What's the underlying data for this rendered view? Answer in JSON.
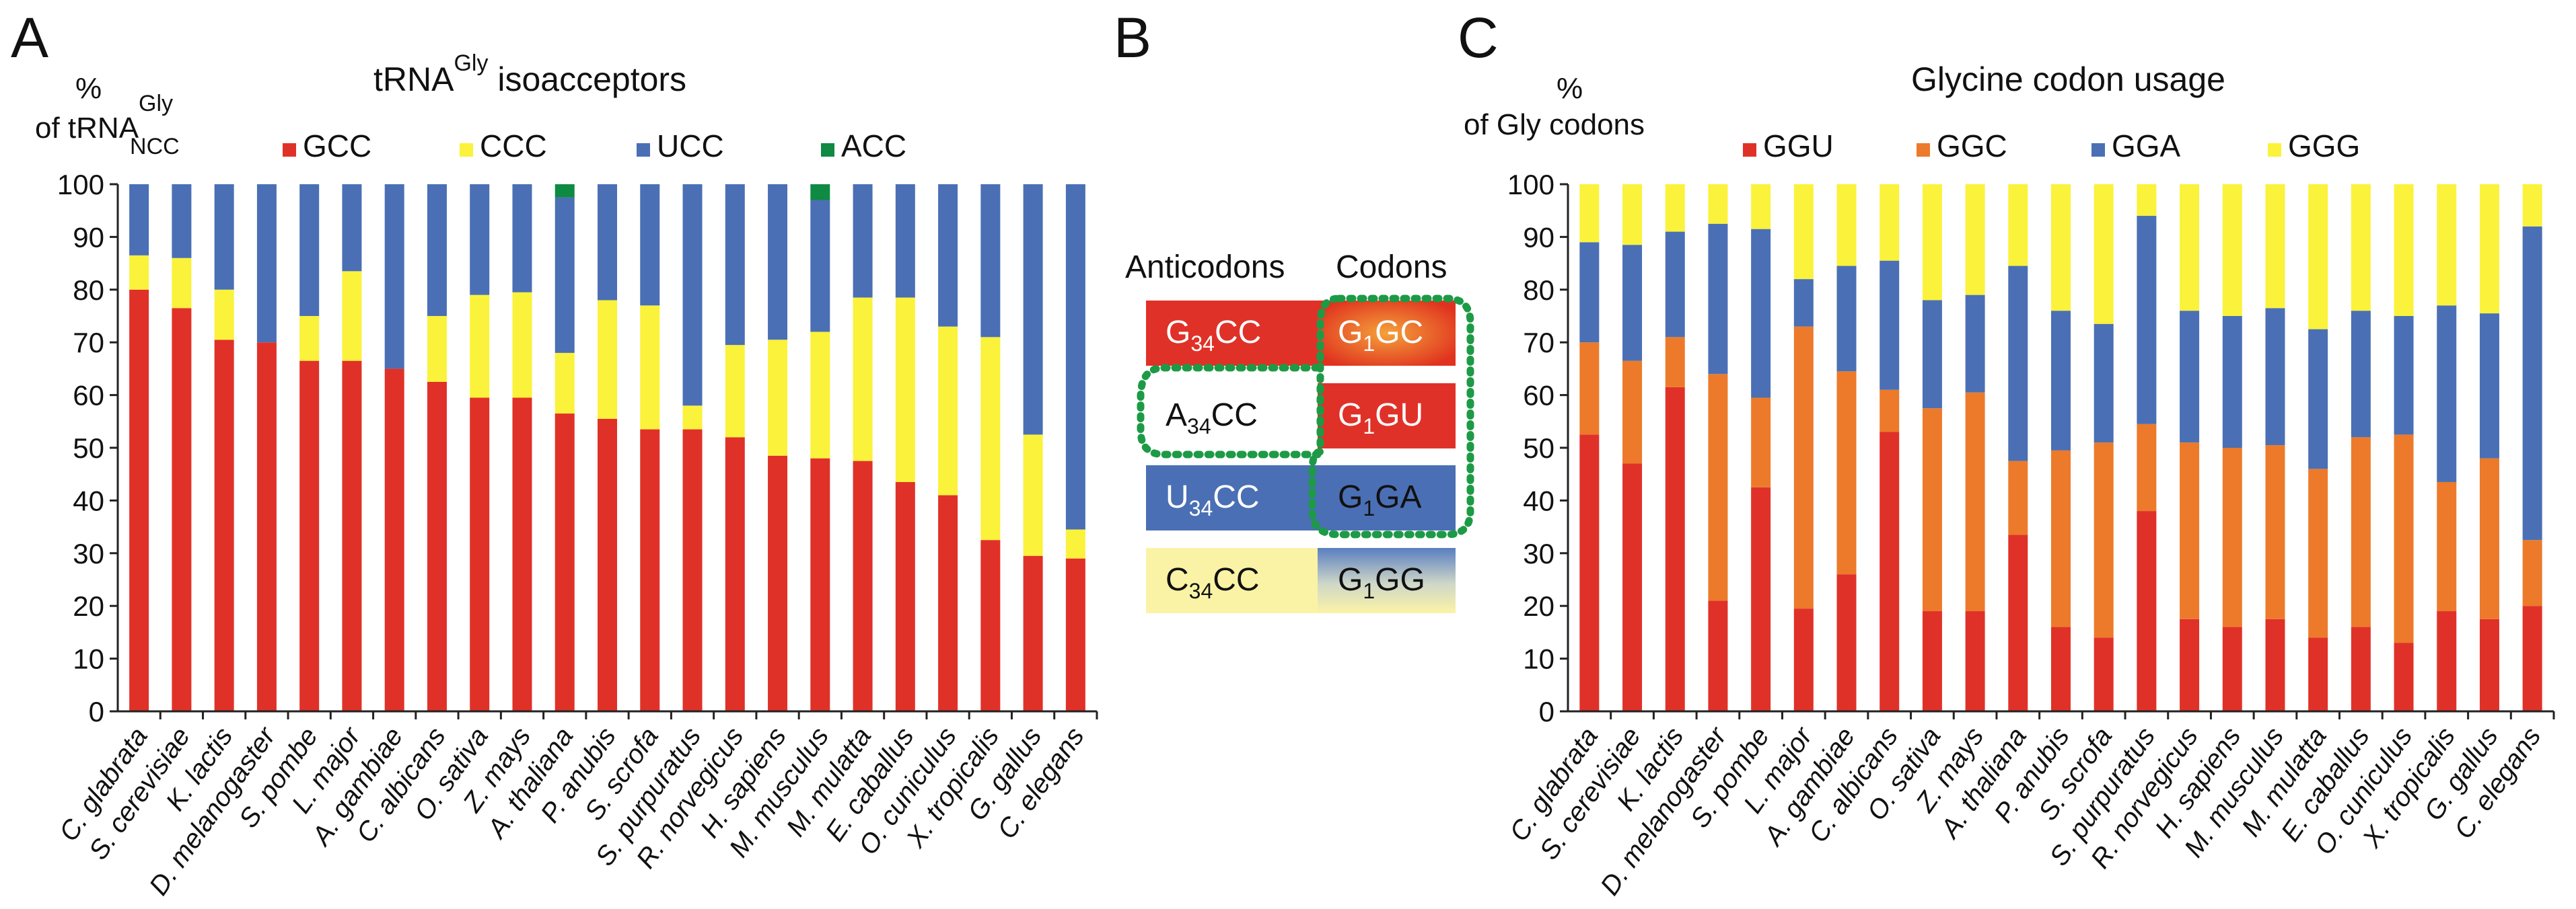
{
  "colors": {
    "red": "#e03128",
    "yellow": "#fbf23b",
    "blue": "#4a6fb5",
    "green": "#0e8a43",
    "orange": "#ec7a2a",
    "paleyellow": "#faf3a6",
    "dotted": "#1d9a46"
  },
  "panels": {
    "a": {
      "letter": "A"
    },
    "b": {
      "letter": "B"
    },
    "c": {
      "letter": "C"
    }
  },
  "panel_b": {
    "header_anticodons": "Anticodons",
    "header_codons": "Codons",
    "anticodons": [
      {
        "pre": "G",
        "sub": "34",
        "post": "CC"
      },
      {
        "pre": "A",
        "sub": "34",
        "post": "CC"
      },
      {
        "pre": "U",
        "sub": "34",
        "post": "CC"
      },
      {
        "pre": "C",
        "sub": "34",
        "post": "CC"
      }
    ],
    "codons": [
      {
        "pre": "G",
        "sub": "1",
        "post": "GC"
      },
      {
        "pre": "G",
        "sub": "1",
        "post": "GU"
      },
      {
        "pre": "G",
        "sub": "1",
        "post": "GA"
      },
      {
        "pre": "G",
        "sub": "1",
        "post": "GG"
      }
    ]
  },
  "chart_data": [
    {
      "type": "bar",
      "stacked": true,
      "title": "tRNA",
      "title_sup": "Gly",
      "title_rest": " isoacceptors",
      "ylabel_line1": "%",
      "ylabel_line2": "of tRNA",
      "ylabel_sup": "Gly",
      "ylabel_sub": "NCC",
      "ylim": [
        0,
        100
      ],
      "yticks": [
        0,
        10,
        20,
        30,
        40,
        50,
        60,
        70,
        80,
        90,
        100
      ],
      "legend": [
        "GCC",
        "CCC",
        "UCC",
        "ACC"
      ],
      "categories": [
        "C. glabrata",
        "S. cerevisiae",
        "K. lactis",
        "D. melanogaster",
        "S. pombe",
        "L. major",
        "A. gambiae",
        "C. albicans",
        "O. sativa",
        "Z. mays",
        "A. thaliana",
        "P. anubis",
        "S. scrofa",
        "S. purpuratus",
        "R. norvegicus",
        "H. sapiens",
        "M. musculus",
        "M. mulatta",
        "E. caballus",
        "O. cuniculus",
        "X. tropicalis",
        "G. gallus",
        "C. elegans"
      ],
      "series": [
        {
          "name": "GCC",
          "values": [
            80,
            76.5,
            70.5,
            70,
            66.5,
            66.5,
            65,
            62.5,
            59.5,
            59.5,
            56.5,
            55.5,
            53.5,
            53.5,
            52,
            48.5,
            48,
            47.5,
            43.5,
            41,
            32.5,
            29.5,
            29
          ]
        },
        {
          "name": "CCC",
          "values": [
            6.5,
            9.5,
            9.5,
            0,
            8.5,
            17,
            0,
            12.5,
            19.5,
            20,
            11.5,
            22.5,
            23.5,
            4.5,
            17.5,
            22,
            24,
            31,
            35,
            32,
            38.5,
            23,
            5.5
          ]
        },
        {
          "name": "UCC",
          "values": [
            13.5,
            14,
            20,
            30,
            25,
            16.5,
            35,
            25,
            21,
            20.5,
            29.5,
            22,
            23,
            42,
            30.5,
            29.5,
            25,
            21.5,
            21.5,
            27,
            29,
            47.5,
            65.5
          ]
        },
        {
          "name": "ACC",
          "values": [
            0,
            0,
            0,
            0,
            0,
            0,
            0,
            0,
            0,
            0,
            2.5,
            0,
            0,
            0,
            0,
            0,
            3,
            0,
            0,
            0,
            0,
            0,
            0
          ]
        }
      ]
    },
    {
      "type": "bar",
      "stacked": true,
      "title": "Glycine codon usage",
      "ylabel_line1": "%",
      "ylabel_line2": "of Gly codons",
      "ylim": [
        0,
        100
      ],
      "yticks": [
        0,
        10,
        20,
        30,
        40,
        50,
        60,
        70,
        80,
        90,
        100
      ],
      "legend": [
        "GGU",
        "GGC",
        "GGA",
        "GGG"
      ],
      "categories": [
        "C. glabrata",
        "S. cerevisiae",
        "K. lactis",
        "D. melanogaster",
        "S. pombe",
        "L. major",
        "A. gambiae",
        "C. albicans",
        "O. sativa",
        "Z. mays",
        "A. thaliana",
        "P. anubis",
        "S. scrofa",
        "S. purpuratus",
        "R. norvegicus",
        "H. sapiens",
        "M. musculus",
        "M. mulatta",
        "E. caballus",
        "O. cuniculus",
        "X. tropicalis",
        "G. gallus",
        "C. elegans"
      ],
      "series": [
        {
          "name": "GGU",
          "values": [
            52.5,
            47,
            61.5,
            21,
            42.5,
            19.5,
            26,
            53,
            19,
            19,
            33.5,
            16,
            14,
            38,
            17.5,
            16,
            17.5,
            14,
            16,
            13,
            19,
            17.5,
            20
          ]
        },
        {
          "name": "GGC",
          "values": [
            17.5,
            19.5,
            9.5,
            43,
            17,
            53.5,
            38.5,
            8,
            38.5,
            41.5,
            14,
            33.5,
            37,
            16.5,
            33.5,
            34,
            33,
            32,
            36,
            39.5,
            24.5,
            30.5,
            12.5
          ]
        },
        {
          "name": "GGA",
          "values": [
            19,
            22,
            20,
            28.5,
            32,
            9,
            20,
            24.5,
            20.5,
            18.5,
            37,
            26.5,
            22.5,
            39.5,
            25,
            25,
            26,
            26.5,
            24,
            22.5,
            33.5,
            27.5,
            59.5
          ]
        },
        {
          "name": "GGG",
          "values": [
            11,
            11.5,
            9,
            7.5,
            8.5,
            18,
            15.5,
            14.5,
            22,
            21,
            15.5,
            24,
            26.5,
            6,
            24,
            25,
            23.5,
            27.5,
            24,
            25,
            23,
            24.5,
            8
          ]
        }
      ]
    }
  ]
}
